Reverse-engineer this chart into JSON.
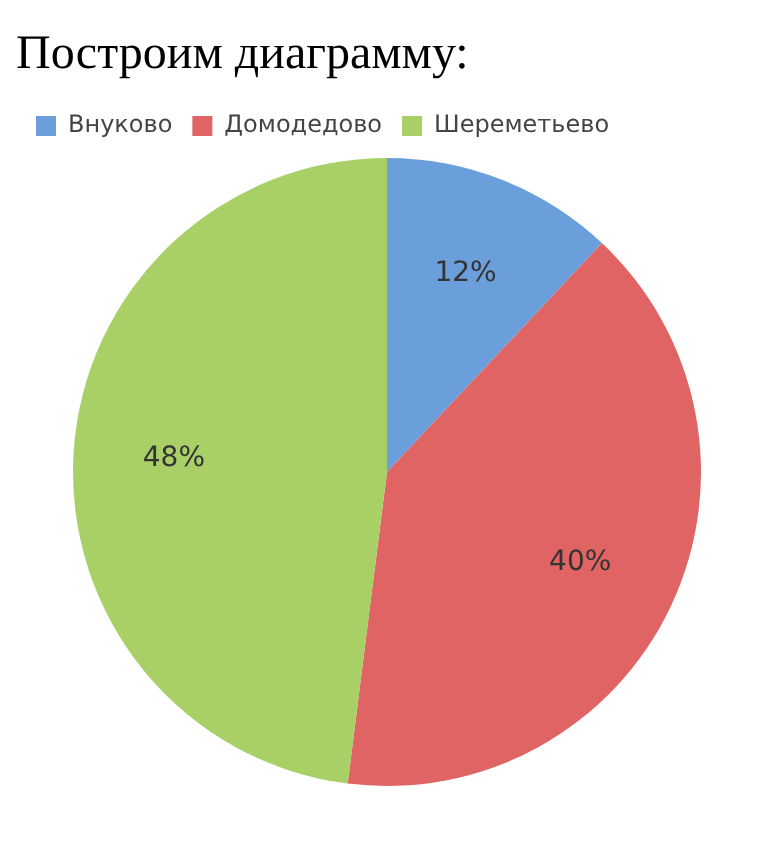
{
  "chart_data": {
    "type": "pie",
    "title": "Построим диаграмму:",
    "categories": [
      "Внуково",
      "Домодедово",
      "Шереметьево"
    ],
    "values": [
      12,
      40,
      48
    ],
    "colors": [
      "#6b9fdc",
      "#e06464",
      "#a8d066"
    ],
    "legend": "top left",
    "value_labels": [
      "12%",
      "40%",
      "48%"
    ]
  }
}
